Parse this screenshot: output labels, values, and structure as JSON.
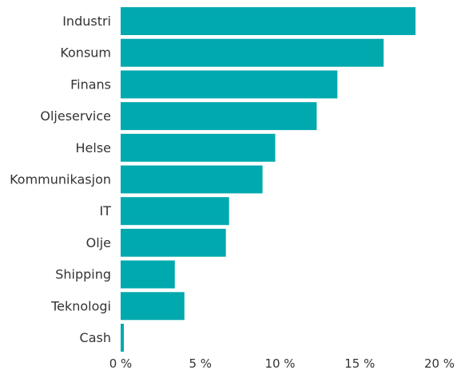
{
  "chart_data": {
    "type": "bar",
    "orientation": "horizontal",
    "title": "",
    "xlabel": "",
    "ylabel": "",
    "categories": [
      "Industri",
      "Konsum",
      "Finans",
      "Oljeservice",
      "Helse",
      "Kommunikasjon",
      "IT",
      "Olje",
      "Shipping",
      "Teknologi",
      "Cash"
    ],
    "values": [
      18.5,
      16.5,
      13.6,
      12.3,
      9.7,
      8.9,
      6.8,
      6.6,
      3.4,
      4.0,
      0.2
    ],
    "xlim": [
      0,
      20
    ],
    "x_ticks": [
      0,
      5,
      10,
      15,
      20
    ],
    "x_tick_labels": [
      "0 %",
      "5 %",
      "10 %",
      "15 %",
      "20 %"
    ],
    "grid": false,
    "legend": "none",
    "bar_color": "#00a9ae"
  }
}
